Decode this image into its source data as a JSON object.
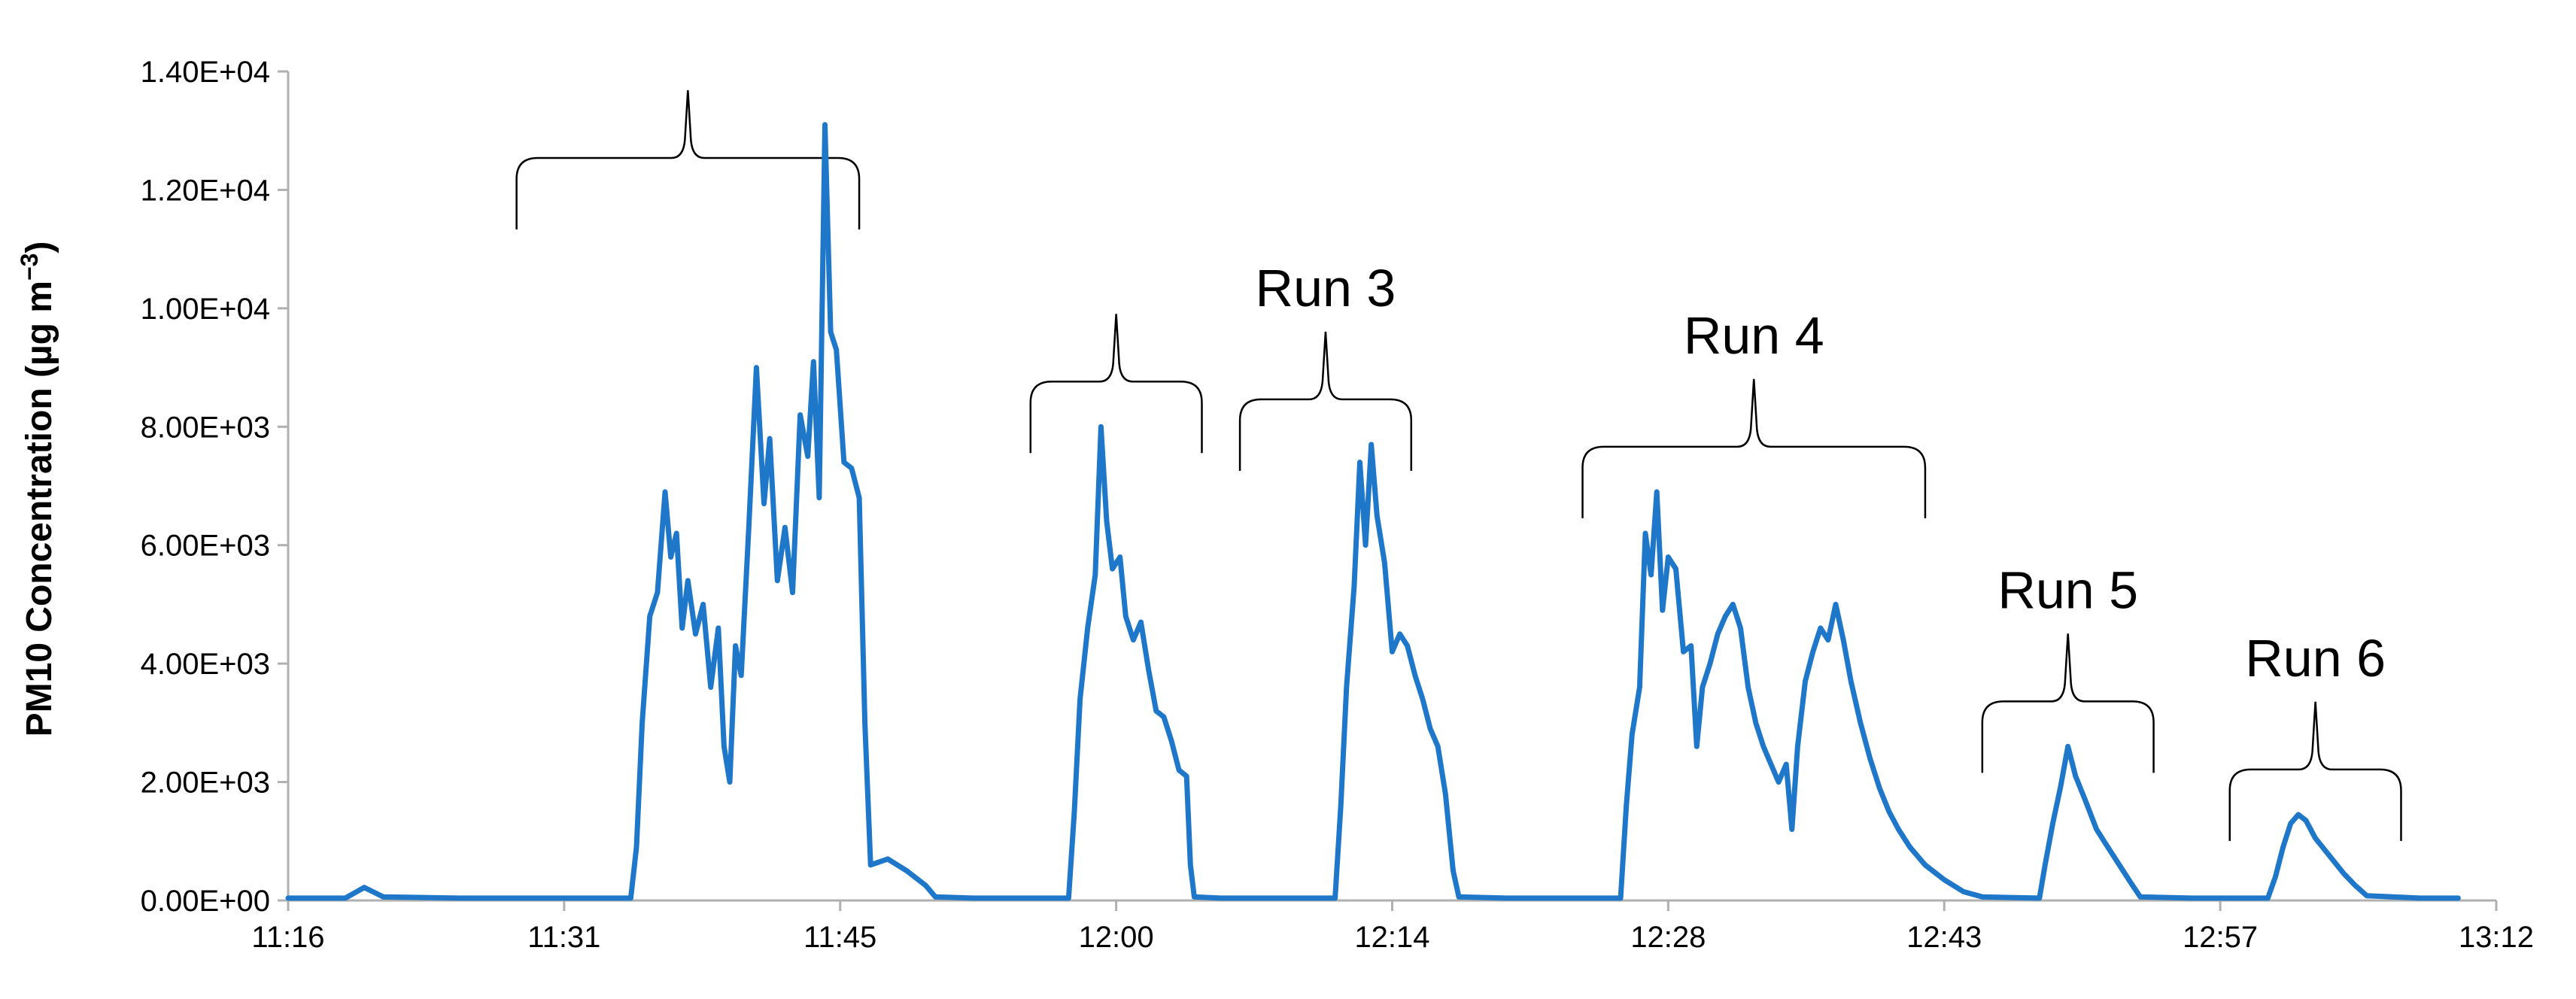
{
  "chart_data": {
    "type": "line",
    "title": "",
    "xlabel": "",
    "ylabel": "PM10 Concentration (µg m⁻³)",
    "ylabel_main": "PM10 Concentration (µg m",
    "ylabel_exp": "−3",
    "ylabel_close": ")",
    "y_tick_labels": [
      "0.00E+00",
      "2.00E+03",
      "4.00E+03",
      "6.00E+03",
      "8.00E+03",
      "1.00E+04",
      "1.20E+04",
      "1.40E+04"
    ],
    "x_tick_labels": [
      "11:16",
      "11:31",
      "11:45",
      "12:00",
      "12:14",
      "12:28",
      "12:43",
      "12:57",
      "13:12"
    ],
    "ylim": [
      0,
      14000
    ],
    "xlim": [
      "11:16",
      "13:12"
    ],
    "grid": false,
    "legend": "none",
    "series_color": "#1f77c9",
    "annotations": [
      {
        "label": "",
        "from": "11:28",
        "to": "11:46"
      },
      {
        "label": "",
        "from": "11:55",
        "to": "12:04"
      },
      {
        "label": "Run 3",
        "from": "12:06",
        "to": "12:15"
      },
      {
        "label": "Run 4",
        "from": "12:24",
        "to": "12:42"
      },
      {
        "label": "Run 5",
        "from": "12:45",
        "to": "12:54"
      },
      {
        "label": "Run 6",
        "from": "12:58",
        "to": "13:07"
      }
    ],
    "series": [
      {
        "points": [
          [
            "11:16",
            40
          ],
          [
            "11:19",
            40
          ],
          [
            "11:20",
            220
          ],
          [
            "11:21",
            60
          ],
          [
            "11:25",
            40
          ],
          [
            "11:30",
            40
          ],
          [
            "11:34",
            40
          ],
          [
            "11:34.3",
            900
          ],
          [
            "11:34.6",
            3000
          ],
          [
            "11:35",
            4800
          ],
          [
            "11:35.4",
            5200
          ],
          [
            "11:35.8",
            6900
          ],
          [
            "11:36.1",
            5800
          ],
          [
            "11:36.4",
            6200
          ],
          [
            "11:36.7",
            4600
          ],
          [
            "11:37",
            5400
          ],
          [
            "11:37.4",
            4500
          ],
          [
            "11:37.8",
            5000
          ],
          [
            "11:38.2",
            3600
          ],
          [
            "11:38.6",
            4600
          ],
          [
            "11:38.9",
            2600
          ],
          [
            "11:39.2",
            2000
          ],
          [
            "11:39.5",
            4300
          ],
          [
            "11:39.8",
            3800
          ],
          [
            "11:40.2",
            6300
          ],
          [
            "11:40.6",
            9000
          ],
          [
            "11:41",
            6700
          ],
          [
            "11:41.3",
            7800
          ],
          [
            "11:41.7",
            5400
          ],
          [
            "11:42.1",
            6300
          ],
          [
            "11:42.5",
            5200
          ],
          [
            "11:42.9",
            8200
          ],
          [
            "11:43.3",
            7500
          ],
          [
            "11:43.6",
            9100
          ],
          [
            "11:43.9",
            6800
          ],
          [
            "11:44.2",
            13100
          ],
          [
            "11:44.5",
            9600
          ],
          [
            "11:44.8",
            9300
          ],
          [
            "11:45.2",
            7400
          ],
          [
            "11:45.6",
            7300
          ],
          [
            "11:46",
            6800
          ],
          [
            "11:46.3",
            3000
          ],
          [
            "11:46.6",
            600
          ],
          [
            "11:47.5",
            700
          ],
          [
            "11:48.5",
            500
          ],
          [
            "11:49.5",
            250
          ],
          [
            "11:50",
            60
          ],
          [
            "11:52",
            40
          ],
          [
            "11:57",
            40
          ],
          [
            "11:57.3",
            1500
          ],
          [
            "11:57.6",
            3400
          ],
          [
            "11:58",
            4600
          ],
          [
            "11:58.4",
            5500
          ],
          [
            "11:58.7",
            8000
          ],
          [
            "11:59",
            6400
          ],
          [
            "11:59.3",
            5600
          ],
          [
            "11:59.7",
            5800
          ],
          [
            "12:00",
            4800
          ],
          [
            "12:00.4",
            4400
          ],
          [
            "12:00.8",
            4700
          ],
          [
            "12:01.2",
            3900
          ],
          [
            "12:01.6",
            3200
          ],
          [
            "12:02",
            3100
          ],
          [
            "12:02.4",
            2700
          ],
          [
            "12:02.8",
            2200
          ],
          [
            "12:03.2",
            2100
          ],
          [
            "12:03.4",
            600
          ],
          [
            "12:03.6",
            60
          ],
          [
            "12:05",
            40
          ],
          [
            "12:11",
            40
          ],
          [
            "12:11.3",
            1600
          ],
          [
            "12:11.6",
            3600
          ],
          [
            "12:12",
            5300
          ],
          [
            "12:12.3",
            7400
          ],
          [
            "12:12.6",
            6000
          ],
          [
            "12:12.9",
            7700
          ],
          [
            "12:13.2",
            6500
          ],
          [
            "12:13.6",
            5700
          ],
          [
            "12:14",
            4200
          ],
          [
            "12:14.4",
            4500
          ],
          [
            "12:14.8",
            4300
          ],
          [
            "12:15.2",
            3800
          ],
          [
            "12:15.6",
            3400
          ],
          [
            "12:16",
            2900
          ],
          [
            "12:16.4",
            2600
          ],
          [
            "12:16.8",
            1800
          ],
          [
            "12:17.2",
            500
          ],
          [
            "12:17.5",
            60
          ],
          [
            "12:20",
            40
          ],
          [
            "12:26",
            40
          ],
          [
            "12:26.3",
            1600
          ],
          [
            "12:26.6",
            2800
          ],
          [
            "12:27",
            3600
          ],
          [
            "12:27.3",
            6200
          ],
          [
            "12:27.6",
            5500
          ],
          [
            "12:27.9",
            6900
          ],
          [
            "12:28.2",
            4900
          ],
          [
            "12:28.5",
            5800
          ],
          [
            "12:28.9",
            5600
          ],
          [
            "12:29.3",
            4200
          ],
          [
            "12:29.7",
            4300
          ],
          [
            "12:30",
            2600
          ],
          [
            "12:30.3",
            3600
          ],
          [
            "12:30.7",
            4000
          ],
          [
            "12:31.1",
            4500
          ],
          [
            "12:31.5",
            4800
          ],
          [
            "12:31.9",
            5000
          ],
          [
            "12:32.3",
            4600
          ],
          [
            "12:32.7",
            3600
          ],
          [
            "12:33.1",
            3000
          ],
          [
            "12:33.5",
            2600
          ],
          [
            "12:33.9",
            2300
          ],
          [
            "12:34.3",
            2000
          ],
          [
            "12:34.7",
            2300
          ],
          [
            "12:35",
            1200
          ],
          [
            "12:35.3",
            2600
          ],
          [
            "12:35.7",
            3700
          ],
          [
            "12:36.1",
            4200
          ],
          [
            "12:36.5",
            4600
          ],
          [
            "12:36.9",
            4400
          ],
          [
            "12:37.3",
            5000
          ],
          [
            "12:37.7",
            4400
          ],
          [
            "12:38.1",
            3700
          ],
          [
            "12:38.6",
            3000
          ],
          [
            "12:39.1",
            2400
          ],
          [
            "12:39.6",
            1900
          ],
          [
            "12:40.1",
            1500
          ],
          [
            "12:40.6",
            1200
          ],
          [
            "12:41.2",
            900
          ],
          [
            "12:42",
            600
          ],
          [
            "12:43",
            350
          ],
          [
            "12:44",
            150
          ],
          [
            "12:45",
            60
          ],
          [
            "12:48",
            40
          ],
          [
            "12:48.3",
            600
          ],
          [
            "12:48.7",
            1300
          ],
          [
            "12:49.1",
            1900
          ],
          [
            "12:49.5",
            2600
          ],
          [
            "12:49.9",
            2100
          ],
          [
            "12:50.4",
            1700
          ],
          [
            "12:51",
            1200
          ],
          [
            "12:51.6",
            900
          ],
          [
            "12:52.2",
            600
          ],
          [
            "12:52.8",
            300
          ],
          [
            "12:53.3",
            60
          ],
          [
            "12:56",
            40
          ],
          [
            "13:00",
            40
          ],
          [
            "13:00.4",
            400
          ],
          [
            "13:00.8",
            900
          ],
          [
            "13:01.2",
            1300
          ],
          [
            "13:01.6",
            1450
          ],
          [
            "13:02",
            1350
          ],
          [
            "13:02.5",
            1050
          ],
          [
            "13:03",
            850
          ],
          [
            "13:03.5",
            650
          ],
          [
            "13:04",
            450
          ],
          [
            "13:04.6",
            250
          ],
          [
            "13:05.2",
            80
          ],
          [
            "13:08",
            40
          ],
          [
            "13:10",
            40
          ]
        ]
      }
    ]
  }
}
